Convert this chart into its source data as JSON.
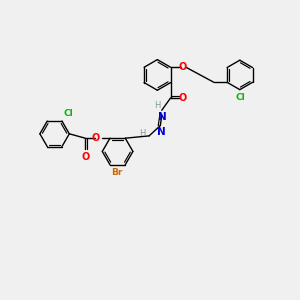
{
  "background_color": "#f0f0f0",
  "atom_colors": {
    "C": "#000000",
    "H": "#7a9a9a",
    "N": "#0000cc",
    "O": "#ff0000",
    "Cl": "#00bb00",
    "Br": "#cc6600"
  }
}
